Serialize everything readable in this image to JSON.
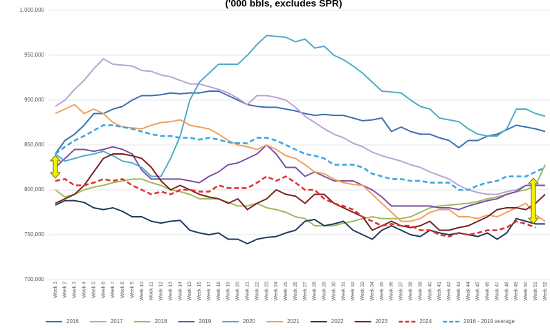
{
  "chart_data": {
    "type": "line",
    "title": "('000 bbls, excludes SPR)",
    "categories": [
      "Week 1",
      "Week 2",
      "Week 3",
      "Week 4",
      "Week 5",
      "Week 6",
      "Week 7",
      "Week 8",
      "Week 9",
      "Week 10",
      "Week 11",
      "Week 12",
      "Week 13",
      "Week 14",
      "Week 15",
      "Week 16",
      "Week 17",
      "Week 18",
      "Week 19",
      "Week 20",
      "Week 21",
      "Week 22",
      "Week 23",
      "Week 24",
      "Week 25",
      "Week 26",
      "Week 27",
      "Week 28",
      "Week 29",
      "Week 30",
      "Week 31",
      "Week 32",
      "Week 33",
      "Week 34",
      "Week 35",
      "Week 36",
      "Week 37",
      "Week 38",
      "Week 39",
      "Week 40",
      "Week 41",
      "Week 42",
      "Week 43",
      "Week 44",
      "Week 45",
      "Week 46",
      "Week 47",
      "Week 48",
      "Week 49",
      "Week 50",
      "Week 51",
      "Week 52"
    ],
    "ylim": [
      700000,
      1000000
    ],
    "yticks": [
      {
        "value": 700000,
        "label": "700,000"
      },
      {
        "value": 750000,
        "label": "750,000"
      },
      {
        "value": 800000,
        "label": "800,000"
      },
      {
        "value": 850000,
        "label": "850,000"
      },
      {
        "value": 900000,
        "label": "900,000"
      },
      {
        "value": 950000,
        "label": "950,000"
      },
      {
        "value": 1000000,
        "label": "1,000,000"
      }
    ],
    "grid": true,
    "legend": "bottom",
    "series": [
      {
        "name": "2016",
        "color": "#3b6fb0",
        "style": "solid",
        "values": [
          840000,
          855000,
          862000,
          872000,
          885000,
          885000,
          890000,
          893000,
          900000,
          905000,
          905000,
          906000,
          908000,
          907000,
          908000,
          908000,
          910000,
          910000,
          905000,
          900000,
          895000,
          893000,
          892000,
          892000,
          890000,
          888000,
          885000,
          883000,
          884000,
          883000,
          883000,
          880000,
          877000,
          878000,
          880000,
          865000,
          870000,
          865000,
          862000,
          862000,
          858000,
          855000,
          847000,
          855000,
          855000,
          860000,
          862000,
          867000,
          872000,
          870000,
          868000,
          865000
        ]
      },
      {
        "name": "2017",
        "color": "#b7a3d6",
        "style": "solid",
        "values": [
          893000,
          900000,
          912000,
          922000,
          935000,
          946000,
          940000,
          939000,
          938000,
          933000,
          932000,
          928000,
          926000,
          922000,
          918000,
          918000,
          915000,
          912000,
          908000,
          902000,
          895000,
          905000,
          905000,
          903000,
          900000,
          892000,
          882000,
          875000,
          868000,
          862000,
          858000,
          852000,
          848000,
          842000,
          838000,
          835000,
          832000,
          828000,
          825000,
          820000,
          816000,
          812000,
          805000,
          800000,
          797000,
          795000,
          795000,
          798000,
          800000,
          805000,
          805000,
          805000
        ]
      },
      {
        "name": "2018",
        "color": "#9bbb59",
        "style": "solid",
        "values": [
          800000,
          792000,
          795000,
          800000,
          803000,
          805000,
          808000,
          810000,
          812000,
          812000,
          808000,
          805000,
          800000,
          798000,
          795000,
          790000,
          790000,
          790000,
          786000,
          782000,
          782000,
          785000,
          780000,
          778000,
          775000,
          770000,
          768000,
          760000,
          760000,
          760000,
          763000,
          765000,
          768000,
          770000,
          768000,
          768000,
          768000,
          770000,
          775000,
          780000,
          782000,
          783000,
          784000,
          785000,
          787000,
          790000,
          792000,
          795000,
          798000,
          800000,
          805000,
          828000
        ]
      },
      {
        "name": "2019",
        "color": "#7a4fa5",
        "style": "solid",
        "values": [
          825000,
          835000,
          845000,
          845000,
          843000,
          845000,
          848000,
          845000,
          840000,
          822000,
          812000,
          812000,
          812000,
          812000,
          810000,
          808000,
          815000,
          820000,
          828000,
          830000,
          835000,
          840000,
          850000,
          840000,
          825000,
          825000,
          815000,
          820000,
          815000,
          810000,
          810000,
          810000,
          805000,
          800000,
          792000,
          782000,
          782000,
          782000,
          782000,
          782000,
          780000,
          780000,
          778000,
          782000,
          785000,
          788000,
          790000,
          795000,
          798000,
          805000,
          805000,
          805000
        ]
      },
      {
        "name": "2020",
        "color": "#4bacc6",
        "style": "solid",
        "values": [
          840000,
          832000,
          835000,
          838000,
          840000,
          843000,
          838000,
          832000,
          830000,
          825000,
          815000,
          815000,
          835000,
          860000,
          900000,
          920000,
          930000,
          940000,
          940000,
          940000,
          950000,
          962000,
          972000,
          971000,
          970000,
          965000,
          968000,
          958000,
          960000,
          950000,
          945000,
          938000,
          930000,
          920000,
          910000,
          909000,
          908000,
          900000,
          893000,
          890000,
          880000,
          878000,
          876000,
          868000,
          862000,
          860000,
          860000,
          868000,
          890000,
          890000,
          885000,
          882000
        ]
      },
      {
        "name": "2021",
        "color": "#f0a05a",
        "style": "solid",
        "values": [
          885000,
          890000,
          895000,
          885000,
          890000,
          885000,
          875000,
          870000,
          869000,
          868000,
          872000,
          875000,
          876000,
          878000,
          872000,
          870000,
          868000,
          862000,
          855000,
          850000,
          848000,
          845000,
          850000,
          845000,
          838000,
          835000,
          828000,
          820000,
          818000,
          812000,
          808000,
          806000,
          805000,
          795000,
          785000,
          775000,
          765000,
          765000,
          768000,
          775000,
          778000,
          778000,
          770000,
          770000,
          768000,
          772000,
          770000,
          775000,
          780000,
          785000,
          772000,
          765000
        ]
      },
      {
        "name": "2022",
        "color": "#1f3a5f",
        "style": "solid",
        "values": [
          783000,
          788000,
          788000,
          786000,
          780000,
          778000,
          780000,
          776000,
          770000,
          770000,
          765000,
          763000,
          765000,
          766000,
          755000,
          752000,
          750000,
          752000,
          745000,
          745000,
          740000,
          745000,
          747000,
          748000,
          752000,
          755000,
          765000,
          767000,
          760000,
          762000,
          765000,
          755000,
          750000,
          745000,
          755000,
          760000,
          755000,
          750000,
          748000,
          755000,
          752000,
          750000,
          752000,
          750000,
          748000,
          752000,
          745000,
          752000,
          768000,
          765000,
          762000,
          762000
        ]
      },
      {
        "name": "2023",
        "color": "#7b1f1f",
        "style": "solid",
        "values": [
          785000,
          790000,
          795000,
          805000,
          820000,
          835000,
          840000,
          840000,
          838000,
          835000,
          825000,
          810000,
          800000,
          805000,
          800000,
          795000,
          792000,
          790000,
          785000,
          790000,
          778000,
          785000,
          790000,
          800000,
          795000,
          793000,
          785000,
          795000,
          795000,
          785000,
          780000,
          775000,
          770000,
          755000,
          760000,
          765000,
          760000,
          758000,
          760000,
          765000,
          755000,
          755000,
          758000,
          760000,
          765000,
          770000,
          778000,
          780000,
          780000,
          778000,
          785000,
          795000
        ]
      },
      {
        "name": "2024",
        "color": "#e03030",
        "style": "dashed",
        "values": [
          810000,
          812000,
          805000,
          805000,
          808000,
          812000,
          810000,
          812000,
          805000,
          800000,
          795000,
          798000,
          795000,
          800000,
          800000,
          798000,
          798000,
          805000,
          802000,
          802000,
          802000,
          808000,
          815000,
          810000,
          815000,
          808000,
          800000,
          800000,
          790000,
          785000,
          782000,
          778000,
          770000,
          765000,
          760000,
          762000,
          760000,
          760000,
          755000,
          755000,
          750000,
          748000,
          752000,
          750000,
          752000,
          755000,
          755000,
          758000,
          765000,
          762000,
          758000,
          null
        ]
      },
      {
        "name": "2016 - 2019 average",
        "color": "#3aa7e0",
        "style": "dashed",
        "values": [
          840000,
          848000,
          855000,
          860000,
          866000,
          872000,
          872000,
          870000,
          868000,
          865000,
          862000,
          860000,
          860000,
          858000,
          858000,
          856000,
          858000,
          856000,
          853000,
          852000,
          852000,
          858000,
          858000,
          855000,
          850000,
          845000,
          840000,
          838000,
          835000,
          828000,
          828000,
          828000,
          825000,
          818000,
          815000,
          812000,
          812000,
          810000,
          810000,
          808000,
          808000,
          808000,
          800000,
          800000,
          805000,
          808000,
          810000,
          815000,
          815000,
          815000,
          820000,
          825000
        ]
      }
    ]
  }
}
